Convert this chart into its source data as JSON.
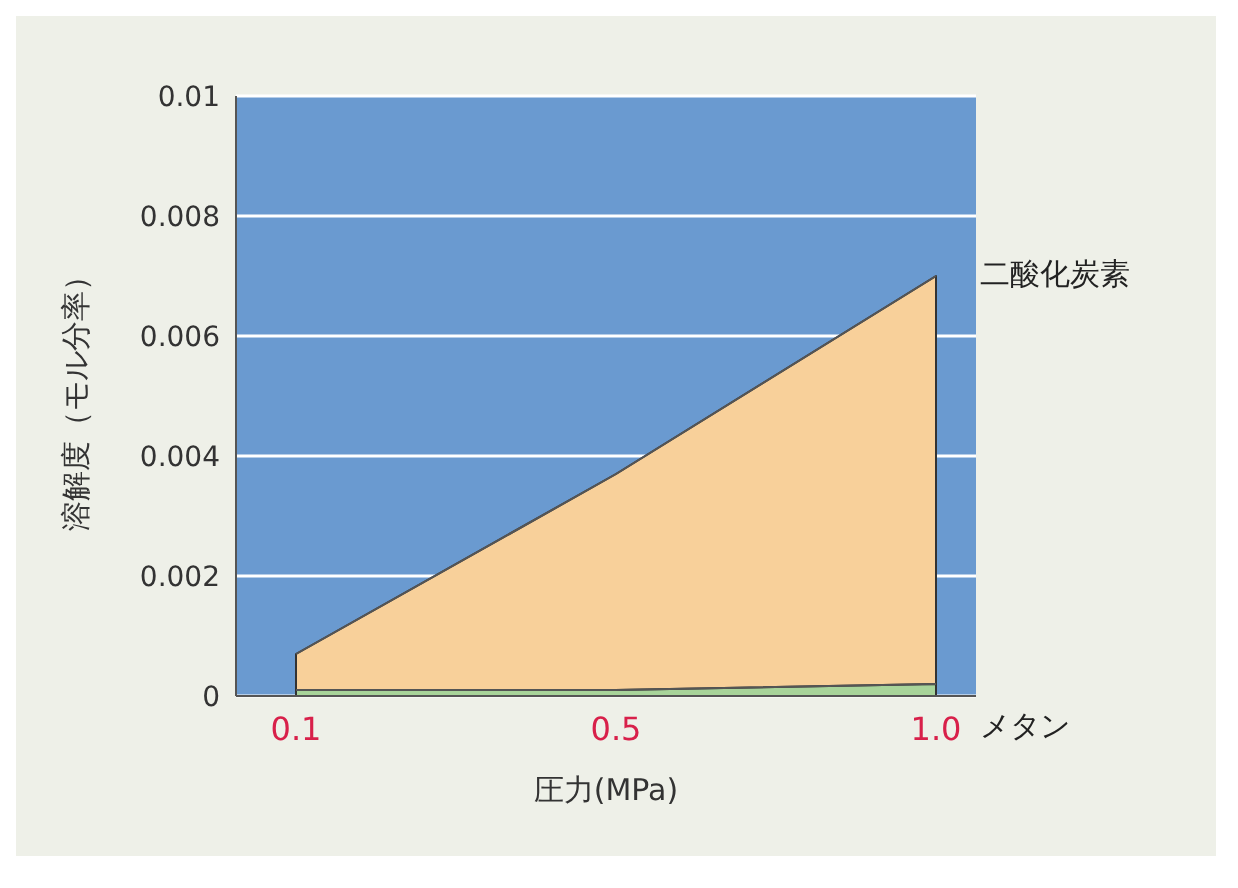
{
  "chart_data": {
    "type": "area",
    "xlabel": "圧力(MPa)",
    "ylabel": "溶解度（モル分率）",
    "categories": [
      "0.1",
      "0.5",
      "1.0"
    ],
    "series": [
      {
        "name": "二酸化炭素",
        "color": "#f8d09a",
        "values": [
          0.0007,
          0.0037,
          0.007
        ]
      },
      {
        "name": "メタン",
        "color": "#a8d49a",
        "values": [
          0.0001,
          0.0001,
          0.0002
        ]
      }
    ],
    "ylim": [
      0,
      0.01
    ],
    "yticks": [
      0,
      0.002,
      0.004,
      0.006,
      0.008,
      0.01
    ],
    "grid": "y"
  }
}
